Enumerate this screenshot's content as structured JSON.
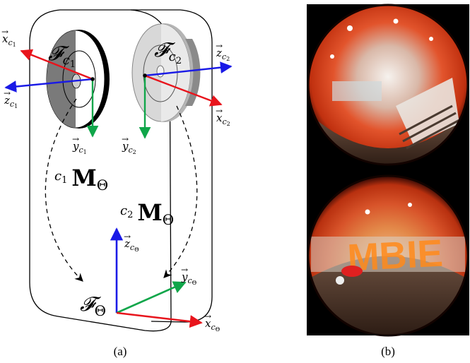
{
  "figure_a": {
    "caption": "(a)",
    "camera1": {
      "frame_label": "𝓕",
      "frame_sub": "c",
      "frame_subsub": "1",
      "x_axis": {
        "base": "x",
        "sub": "c",
        "subsub": "1"
      },
      "y_axis": {
        "base": "y",
        "sub": "c",
        "subsub": "1"
      },
      "z_axis": {
        "base": "z",
        "sub": "c",
        "subsub": "1"
      },
      "transform": {
        "pre_base": "c",
        "pre_sub": "1",
        "matrix": "M",
        "matrix_sub": "Θ"
      }
    },
    "camera2": {
      "frame_label": "𝓕",
      "frame_sub": "c",
      "frame_subsub": "2",
      "x_axis": {
        "base": "x",
        "sub": "c",
        "subsub": "2"
      },
      "y_axis": {
        "base": "y",
        "sub": "c",
        "subsub": "2"
      },
      "z_axis": {
        "base": "z",
        "sub": "c",
        "subsub": "2"
      },
      "transform": {
        "pre_base": "c",
        "pre_sub": "2",
        "matrix": "M",
        "matrix_sub": "Θ"
      }
    },
    "rig": {
      "frame_label": "𝓕",
      "frame_sub": "Θ",
      "x_axis": {
        "base": "x",
        "sub": "c",
        "subsub": "Θ"
      },
      "y_axis": {
        "base": "y",
        "sub": "c",
        "subsub": "Θ"
      },
      "z_axis": {
        "base": "z",
        "sub": "c",
        "subsub": "Θ"
      }
    },
    "colors": {
      "x_axis": "#e8141c",
      "y_axis": "#10a64a",
      "z_axis": "#1a1ae6"
    }
  },
  "figure_b": {
    "caption": "(b)",
    "top_image": "fisheye-photo-lobby-stairs",
    "bottom_image": "fisheye-photo-lobby-windows"
  }
}
